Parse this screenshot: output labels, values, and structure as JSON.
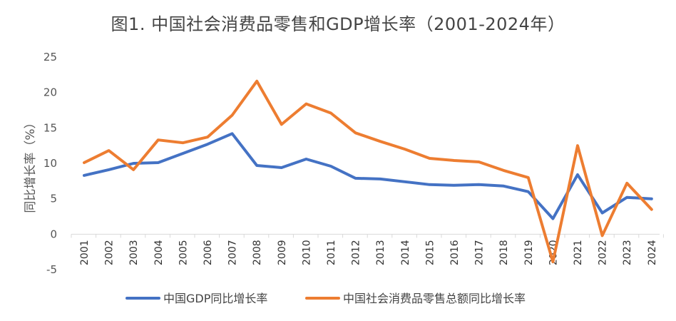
{
  "chart_data": {
    "type": "line",
    "title": "图1. 中国社会消费品零售和GDP增长率（2001-2024年）",
    "xlabel": "",
    "ylabel": "同比增长率（%）",
    "ylim": [
      -5,
      25
    ],
    "yticks": [
      25,
      20,
      15,
      10,
      5,
      0,
      -5
    ],
    "grid": false,
    "legend_position": "bottom",
    "x": [
      "2001",
      "2002",
      "2003",
      "2004",
      "2005",
      "2006",
      "2007",
      "2008",
      "2009",
      "2010",
      "2011",
      "2012",
      "2013",
      "2014",
      "2015",
      "2016",
      "2017",
      "2018",
      "2019",
      "2020",
      "2021",
      "2022",
      "2023",
      "2024"
    ],
    "series": [
      {
        "name": "中国GDP同比增长率",
        "color": "#4472C4",
        "values": [
          8.3,
          9.1,
          10.0,
          10.1,
          11.4,
          12.7,
          14.2,
          9.7,
          9.4,
          10.6,
          9.6,
          7.9,
          7.8,
          7.4,
          7.0,
          6.9,
          7.0,
          6.8,
          6.0,
          2.2,
          8.4,
          3.0,
          5.2,
          5.0
        ]
      },
      {
        "name": "中国社会消费品零售总额同比增长率",
        "color": "#ED7D31",
        "values": [
          10.1,
          11.8,
          9.1,
          13.3,
          12.9,
          13.7,
          16.8,
          21.6,
          15.5,
          18.4,
          17.1,
          14.3,
          13.1,
          12.0,
          10.7,
          10.4,
          10.2,
          9.0,
          8.0,
          -3.9,
          12.5,
          -0.2,
          7.2,
          3.5
        ]
      }
    ]
  }
}
